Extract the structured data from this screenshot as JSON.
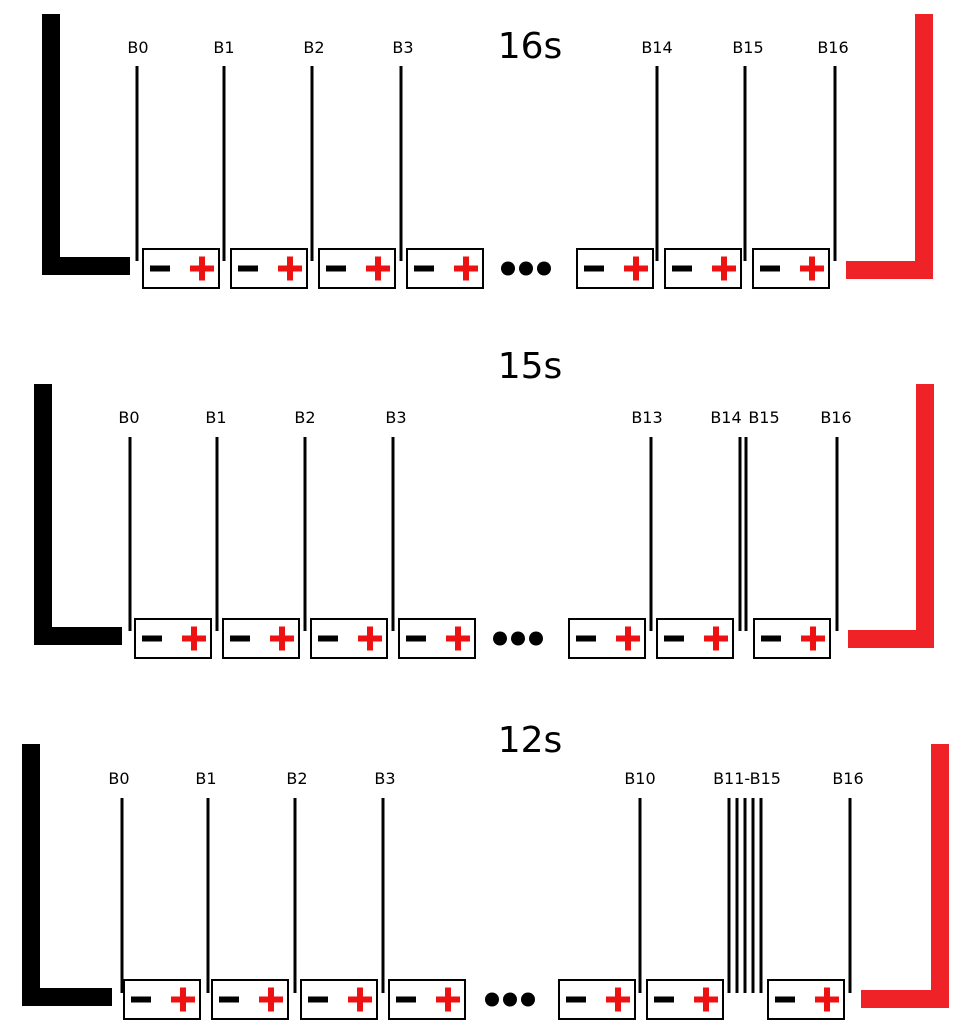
{
  "colors": {
    "negative": "#000000",
    "positive": "#ee2227",
    "plus_sign": "#ee1111",
    "line": "#000000"
  },
  "symbols": {
    "minus": "−",
    "plus": "+",
    "ellipsis": "●●●"
  },
  "diagrams": [
    {
      "title": "16s",
      "taps": [
        {
          "label": "B0",
          "wires": 1
        },
        {
          "label": "B1",
          "wires": 1
        },
        {
          "label": "B2",
          "wires": 1
        },
        {
          "label": "B3",
          "wires": 1
        },
        {
          "label": "B14",
          "wires": 1
        },
        {
          "label": "B15",
          "wires": 1
        },
        {
          "label": "B16",
          "wires": 1
        }
      ],
      "cells_before_gap": 4,
      "cells_after_gap": 3
    },
    {
      "title": "15s",
      "taps": [
        {
          "label": "B0",
          "wires": 1
        },
        {
          "label": "B1",
          "wires": 1
        },
        {
          "label": "B2",
          "wires": 1
        },
        {
          "label": "B3",
          "wires": 1
        },
        {
          "label": "B13",
          "wires": 1
        },
        {
          "label": "B14",
          "wires": 2,
          "extra_label": "B15"
        },
        {
          "label": "B16",
          "wires": 1
        }
      ],
      "cells_before_gap": 4,
      "cells_after_gap": 3
    },
    {
      "title": "12s",
      "taps": [
        {
          "label": "B0",
          "wires": 1
        },
        {
          "label": "B1",
          "wires": 1
        },
        {
          "label": "B2",
          "wires": 1
        },
        {
          "label": "B3",
          "wires": 1
        },
        {
          "label": "B10",
          "wires": 1
        },
        {
          "label": "B11-B15",
          "wires": 5
        },
        {
          "label": "B16",
          "wires": 1
        }
      ],
      "cells_before_gap": 4,
      "cells_after_gap": 3
    }
  ]
}
